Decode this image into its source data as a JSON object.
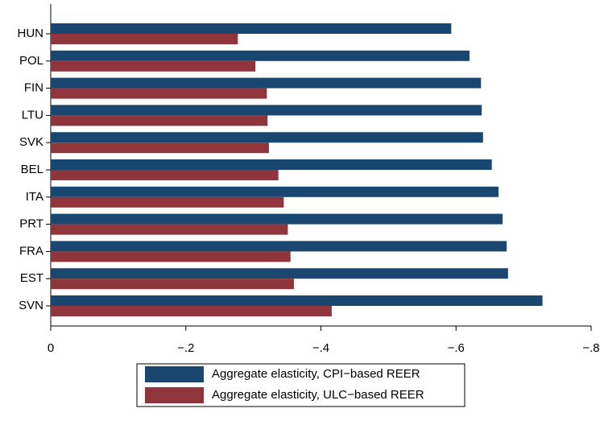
{
  "chart_data": {
    "type": "hbar",
    "categories": [
      "HUN",
      "POL",
      "FIN",
      "LTU",
      "SVK",
      "BEL",
      "ITA",
      "PRT",
      "FRA",
      "EST",
      "SVN"
    ],
    "series": [
      {
        "name": "Aggregate elasticity, CPI−based REER",
        "color": "#1a476f",
        "values": [
          -0.593,
          -0.62,
          -0.637,
          -0.638,
          -0.64,
          -0.653,
          -0.663,
          -0.669,
          -0.675,
          -0.677,
          -0.728
        ]
      },
      {
        "name": "Aggregate elasticity, ULC−based REER",
        "color": "#90353b",
        "values": [
          -0.277,
          -0.303,
          -0.32,
          -0.321,
          -0.323,
          -0.337,
          -0.345,
          -0.351,
          -0.355,
          -0.36,
          -0.416
        ]
      }
    ],
    "xlim": [
      0,
      -0.8
    ],
    "xticks": [
      0,
      {
        "value": -0.2,
        "label": "−.2"
      },
      {
        "value": -0.4,
        "label": "−.4"
      },
      {
        "value": -0.6,
        "label": "−.6"
      },
      {
        "value": -0.8,
        "label": "−.8"
      }
    ],
    "legend": "bottom"
  }
}
